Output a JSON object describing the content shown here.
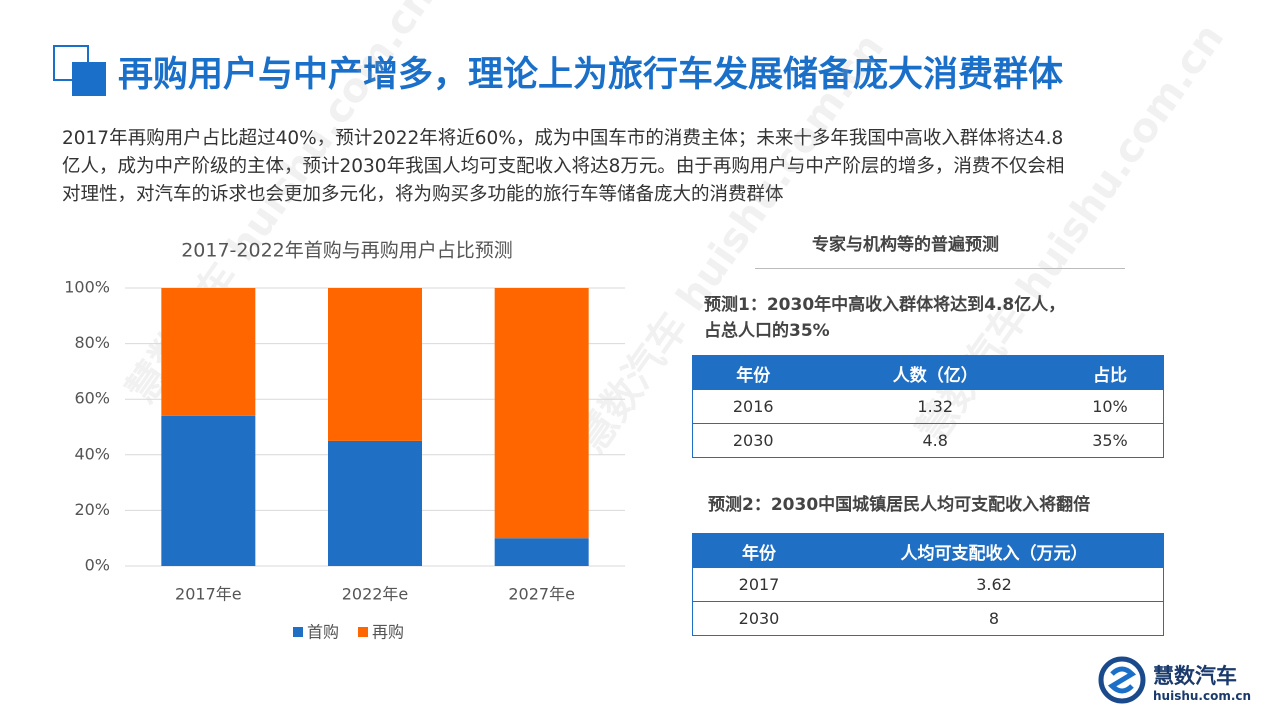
{
  "header": {
    "title": "再购用户与中产增多，理论上为旅行车发展储备庞大消费群体"
  },
  "body": {
    "lines": [
      "2017年再购用户占比超过40%，预计2022年将近60%，成为中国车市的消费主体；未来十多年我国中高收入群体将达4.8",
      "亿人，成为中产阶级的主体，预计2030年我国人均可支配收入将达8万元。由于再购用户与中产阶层的增多，消费不仅会相",
      "对理性，对汽车的诉求也会更加多元化，将为购买多功能的旅行车等储备庞大的消费群体"
    ]
  },
  "chart_data": {
    "type": "stacked_bar",
    "title": "2017-2022年首购与再购用户占比预测",
    "categories": [
      "2017年e",
      "2022年e",
      "2027年e"
    ],
    "series": [
      {
        "name": "首购",
        "color": "#1f6fc5",
        "values": [
          54,
          45,
          10
        ]
      },
      {
        "name": "再购",
        "color": "#ff6600",
        "values": [
          46,
          55,
          90
        ]
      }
    ],
    "ylim": [
      0,
      100
    ],
    "yticks": [
      {
        "value": 0,
        "label": "0%"
      },
      {
        "value": 20,
        "label": "20%"
      },
      {
        "value": 40,
        "label": "40%"
      },
      {
        "value": 60,
        "label": "60%"
      },
      {
        "value": 80,
        "label": "80%"
      },
      {
        "value": 100,
        "label": "100%"
      }
    ],
    "grid": true,
    "legend": "bottom"
  },
  "panel": {
    "title": "专家与机构等的普遍预测",
    "forecast1": {
      "lines": [
        "预测1：2030年中高收入群体将达到4.8亿人，",
        "占总人口的35%"
      ],
      "table": {
        "header": [
          "年份",
          "人数（亿）",
          "占比"
        ],
        "rows": [
          [
            "2016",
            "1.32",
            "10%"
          ],
          [
            "2030",
            "4.8",
            "35%"
          ]
        ]
      }
    },
    "forecast2": {
      "title": "预测2：2030中国城镇居民人均可支配收入将翻倍",
      "table": {
        "header": [
          "年份",
          "人均可支配收入（万元）"
        ],
        "rows": [
          [
            "2017",
            "3.62"
          ],
          [
            "2030",
            "8"
          ]
        ]
      }
    }
  },
  "logo": {
    "name": "慧数汽车",
    "url": "huishu.com.cn"
  },
  "watermark": "慧数汽车 huishu.com.cn"
}
